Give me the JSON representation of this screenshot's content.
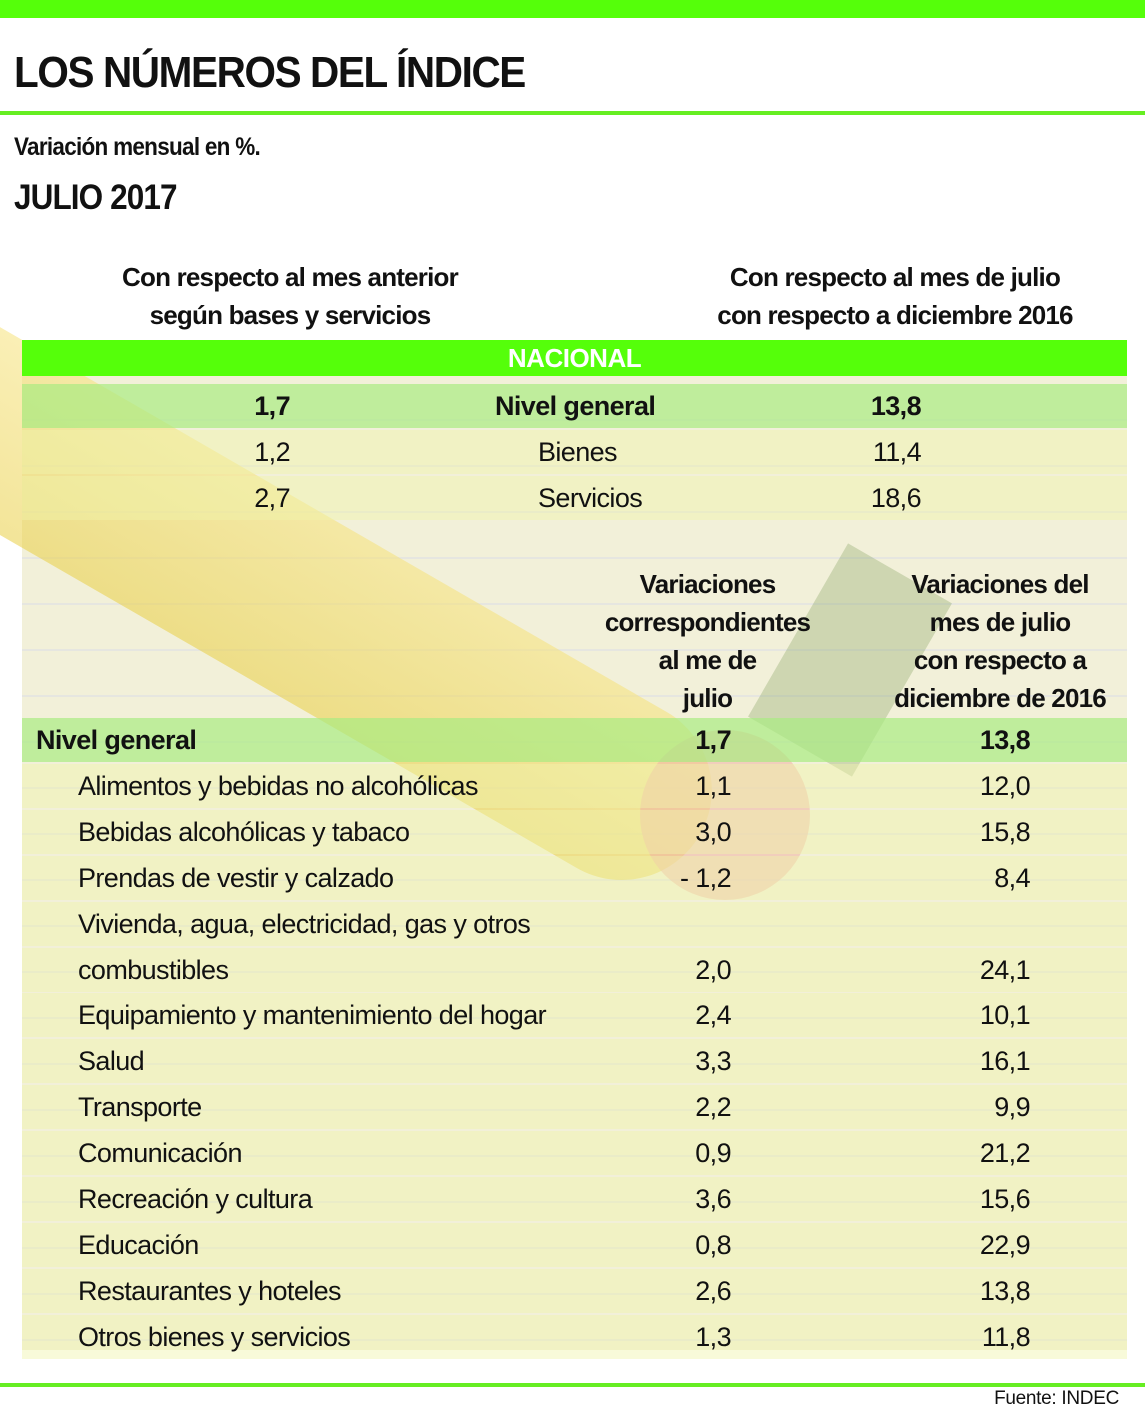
{
  "header": {
    "title": "LOS NÚMEROS DEL ÍNDICE",
    "subtitle": "Variación mensual en %.",
    "period": "JULIO 2017"
  },
  "colors": {
    "accent": "#55ff0a",
    "highlight_row": "#c9eea0"
  },
  "chart_data": [
    {
      "type": "table",
      "section": "NACIONAL",
      "columns": [
        "Con respecto al mes anterior según bases y servicios",
        "",
        "Con respecto al mes de julio con respecto a diciembre 2016"
      ],
      "rows": [
        {
          "label": "Nivel general",
          "monthly": "1,7",
          "ytd": "13,8"
        },
        {
          "label": "Bienes",
          "monthly": "1,2",
          "ytd": "11,4"
        },
        {
          "label": "Servicios",
          "monthly": "2,7",
          "ytd": "18,6"
        }
      ]
    },
    {
      "type": "table",
      "columns": [
        "",
        "Variaciones correspondientes al me de julio",
        "Variaciones del mes de julio con respecto a diciembre de 2016"
      ],
      "rows": [
        {
          "label": "Nivel general",
          "monthly": "1,7",
          "ytd": "13,8"
        },
        {
          "label": "Alimentos y bebidas no alcohólicas",
          "monthly": "1,1",
          "ytd": "12,0"
        },
        {
          "label": "Bebidas alcohólicas y tabaco",
          "monthly": "3,0",
          "ytd": "15,8"
        },
        {
          "label": "Prendas de vestir y calzado",
          "monthly": "- 1,2",
          "ytd": "8,4"
        },
        {
          "label": "Vivienda, agua, electricidad, gas y otros",
          "monthly": "",
          "ytd": ""
        },
        {
          "label": "combustibles",
          "monthly": "2,0",
          "ytd": "24,1"
        },
        {
          "label": "Equipamiento y mantenimiento del hogar",
          "monthly": "2,4",
          "ytd": "10,1"
        },
        {
          "label": "Salud",
          "monthly": "3,3",
          "ytd": "16,1"
        },
        {
          "label": "Transporte",
          "monthly": "2,2",
          "ytd": "9,9"
        },
        {
          "label": "Comunicación",
          "monthly": "0,9",
          "ytd": "21,2"
        },
        {
          "label": "Recreación y cultura",
          "monthly": "3,6",
          "ytd": "15,6"
        },
        {
          "label": "Educación",
          "monthly": "0,8",
          "ytd": "22,9"
        },
        {
          "label": "Restaurantes y hoteles",
          "monthly": "2,6",
          "ytd": "13,8"
        },
        {
          "label": "Otros bienes y servicios",
          "monthly": "1,3",
          "ytd": "11,8"
        }
      ]
    }
  ],
  "headers": {
    "left": [
      "Con respecto al mes anterior",
      "según bases y servicios"
    ],
    "right": [
      "Con respecto al mes de julio",
      "con respecto a diciembre 2016"
    ],
    "nacional": "NACIONAL",
    "col_monthly": [
      "Variaciones",
      "correspondientes",
      "al me de",
      "julio"
    ],
    "col_ytd": [
      "Variaciones del",
      "mes de julio",
      "con respecto a",
      "diciembre de 2016"
    ]
  },
  "footer": {
    "source": "Fuente: INDEC"
  }
}
